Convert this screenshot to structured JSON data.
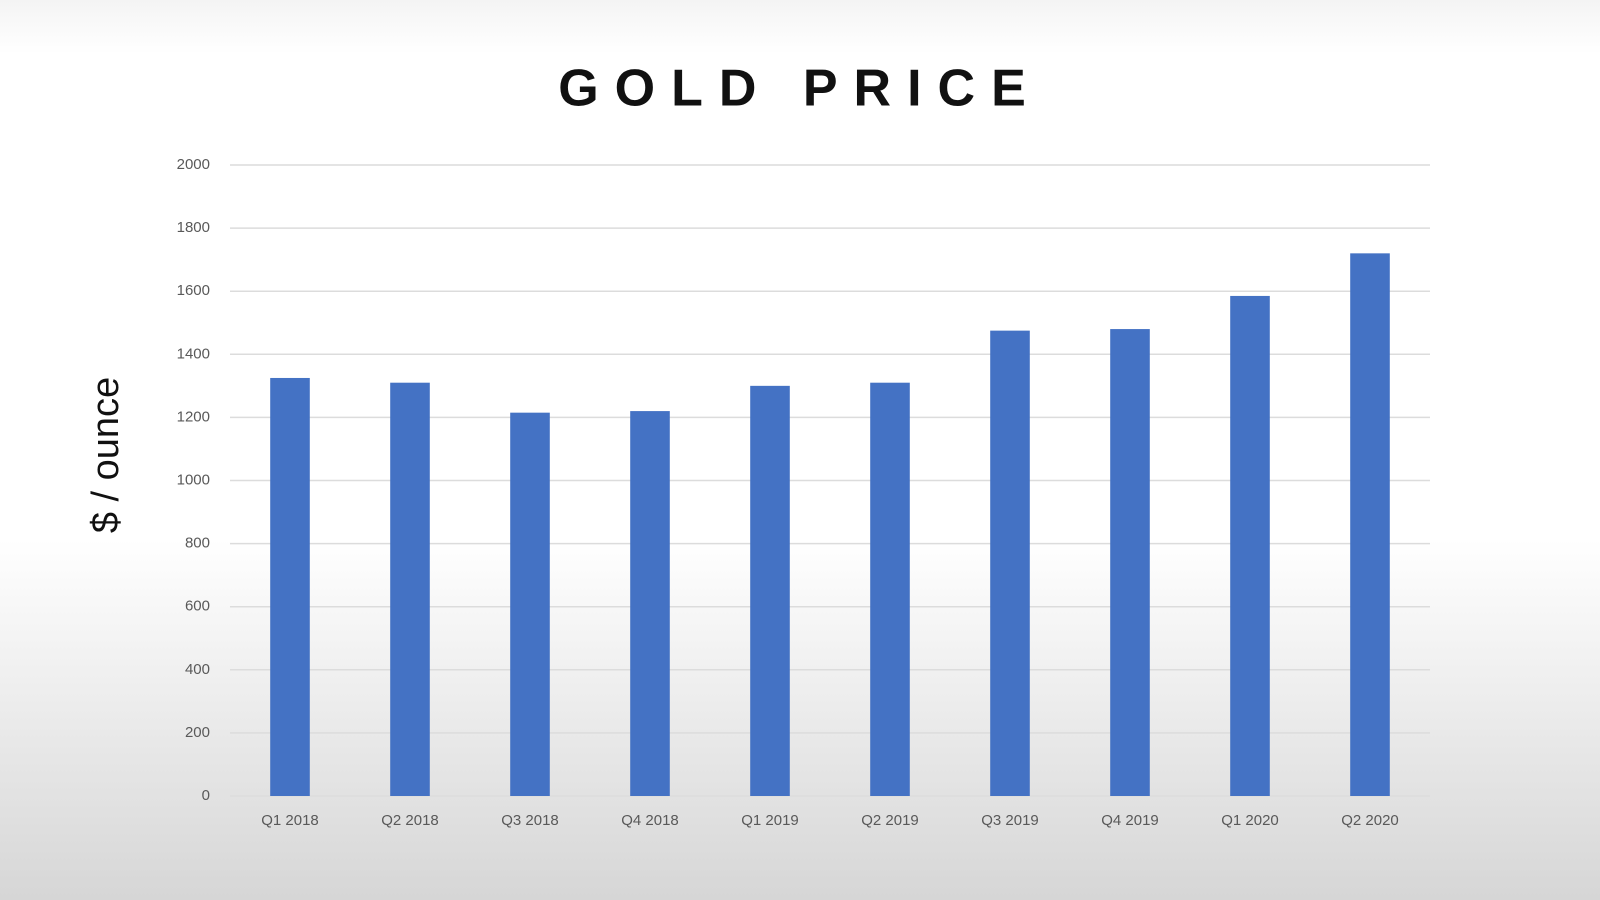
{
  "chart_data": {
    "type": "bar",
    "title": "GOLD PRICE",
    "y_label": "$ / ounce",
    "categories": [
      "Q1 2018",
      "Q2 2018",
      "Q3 2018",
      "Q4 2018",
      "Q1 2019",
      "Q2 2019",
      "Q3 2019",
      "Q4 2019",
      "Q1 2020",
      "Q2 2020"
    ],
    "values": [
      1325,
      1310,
      1215,
      1220,
      1300,
      1310,
      1475,
      1480,
      1585,
      1720
    ],
    "color": "#4472c4",
    "ylim": [
      0,
      2000
    ],
    "yticks": [
      0,
      200,
      400,
      600,
      800,
      1000,
      1200,
      1400,
      1600,
      1800,
      2000
    ],
    "grid": true
  }
}
